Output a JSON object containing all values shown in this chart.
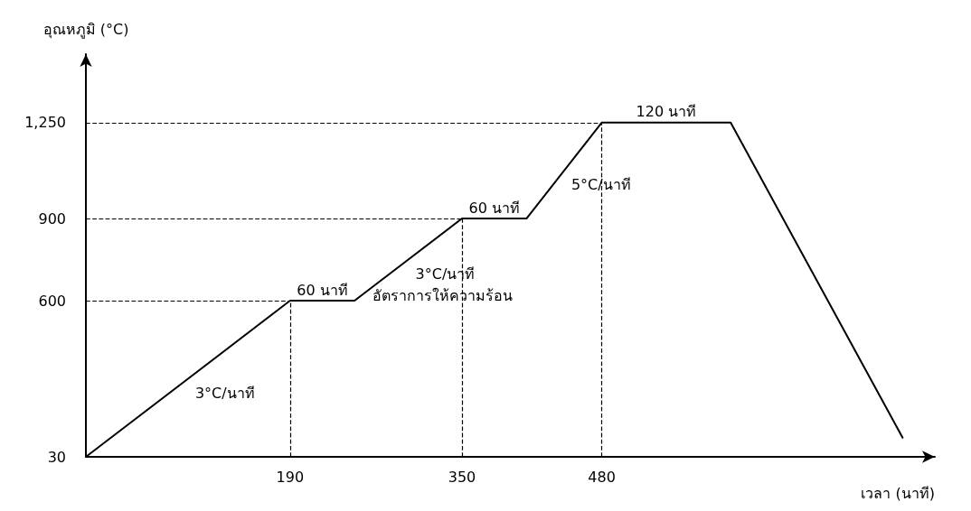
{
  "chart_data": {
    "type": "line",
    "xlabel": "เวลา (นาที)",
    "ylabel": "อุณหภูมิ (°C)",
    "x": [
      0,
      190,
      250,
      350,
      410,
      480,
      600,
      760
    ],
    "series": [
      {
        "color": "#000000",
        "values": [
          30,
          600,
          600,
          900,
          900,
          1250,
          1250,
          100
        ]
      }
    ],
    "xlim": [
      0,
      790
    ],
    "xticks": [
      190,
      350,
      480
    ],
    "ylim": [
      30,
      1500
    ],
    "yticks": [
      30,
      600,
      900,
      {
        "value": 1250,
        "label": "1,250"
      }
    ],
    "ref_lines": [
      {
        "axis": "y",
        "value": 600,
        "line_style": "dashed",
        "color": "#000000"
      },
      {
        "axis": "y",
        "value": 900,
        "line_style": "dashed",
        "color": "#000000"
      },
      {
        "axis": "y",
        "value": 1250,
        "line_style": "dashed",
        "color": "#000000"
      },
      {
        "axis": "x",
        "value": 190,
        "line_style": "dashed",
        "color": "#000000"
      },
      {
        "axis": "x",
        "value": 350,
        "line_style": "dashed",
        "color": "#000000"
      },
      {
        "axis": "x",
        "value": 480,
        "line_style": "dashed",
        "color": "#000000"
      }
    ],
    "annotations": [
      {
        "text": "60 นาที",
        "x": 220,
        "y": 600
      },
      {
        "text": "60 นาที",
        "x": 380,
        "y": 900
      },
      {
        "text": "120 นาที",
        "x": 540,
        "y": 1250
      },
      {
        "text": "3°C/นาที",
        "x": 95,
        "y": 315
      },
      {
        "text": "3°C/นาที",
        "x": 300,
        "y": 750
      },
      {
        "text": "5°C/นาที",
        "x": 445,
        "y": 1075
      },
      "อัตราการให้ความร้อน"
    ],
    "marker": "none",
    "line_style": "solid"
  }
}
